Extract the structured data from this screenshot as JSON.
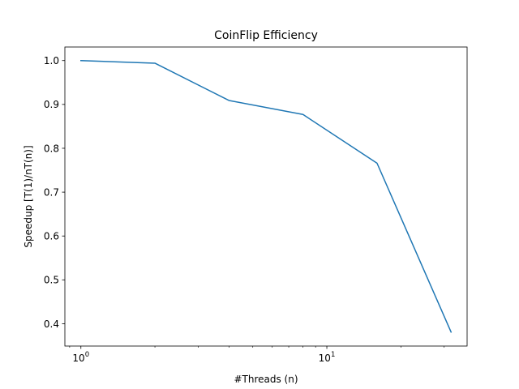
{
  "chart_data": {
    "type": "line",
    "title": "CoinFlip Efficiency",
    "xlabel": "#Threads (n)",
    "ylabel": "Speedup [T(1)/nT(n)]",
    "x_scale": "log",
    "xlim": [
      0.8607,
      37.18
    ],
    "ylim": [
      0.3491,
      1.0309
    ],
    "x_ticks": [
      {
        "value": 1,
        "base": "10",
        "exp": "0"
      },
      {
        "value": 10,
        "base": "10",
        "exp": "1"
      }
    ],
    "y_ticks": [
      0.4,
      0.5,
      0.6,
      0.7,
      0.8,
      0.9,
      1.0
    ],
    "y_tick_labels": [
      "0.4",
      "0.5",
      "0.6",
      "0.7",
      "0.8",
      "0.9",
      "1.0"
    ],
    "grid": false,
    "series": [
      {
        "color": "#1f77b4",
        "x": [
          1,
          2,
          4,
          8,
          16,
          32
        ],
        "y": [
          1.0,
          0.994,
          0.909,
          0.877,
          0.766,
          0.381
        ]
      }
    ]
  }
}
